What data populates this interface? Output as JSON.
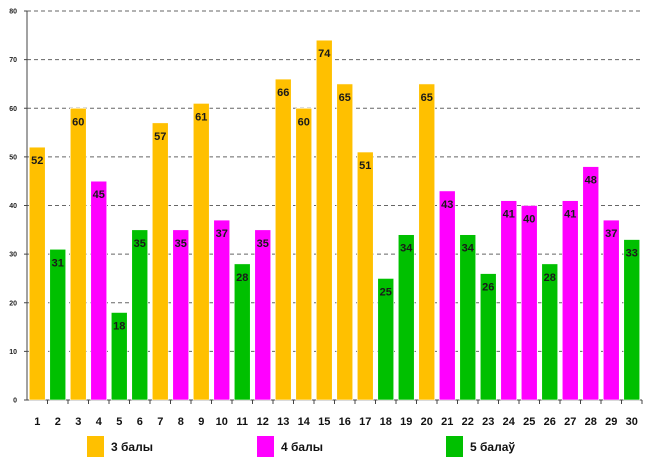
{
  "chart_data": {
    "type": "bar",
    "categories": [
      "1",
      "2",
      "3",
      "4",
      "5",
      "6",
      "7",
      "8",
      "9",
      "10",
      "11",
      "12",
      "13",
      "14",
      "15",
      "16",
      "17",
      "18",
      "19",
      "20",
      "21",
      "22",
      "23",
      "24",
      "25",
      "26",
      "27",
      "28",
      "29",
      "30"
    ],
    "values": [
      52,
      31,
      60,
      45,
      18,
      35,
      57,
      35,
      61,
      37,
      28,
      35,
      66,
      60,
      74,
      65,
      51,
      25,
      34,
      65,
      43,
      34,
      26,
      41,
      40,
      28,
      41,
      48,
      37,
      33
    ],
    "groups": [
      "3",
      "5",
      "3",
      "4",
      "5",
      "5",
      "3",
      "4",
      "3",
      "4",
      "5",
      "4",
      "3",
      "3",
      "3",
      "3",
      "3",
      "5",
      "5",
      "3",
      "4",
      "5",
      "5",
      "4",
      "4",
      "5",
      "4",
      "4",
      "4",
      "5"
    ],
    "legend": [
      {
        "key": "3",
        "label": "3 балы",
        "color": "#FFC000"
      },
      {
        "key": "4",
        "label": "4 балы",
        "color": "#FF00FF"
      },
      {
        "key": "5",
        "label": "5 балаў",
        "color": "#00C000"
      }
    ],
    "yticks": [
      "0",
      "10",
      "20",
      "30",
      "40",
      "50",
      "60",
      "70",
      "80"
    ],
    "ylim": [
      0,
      80
    ],
    "grid": true,
    "legend_position": "bottom",
    "title": "",
    "xlabel": "",
    "ylabel": ""
  }
}
